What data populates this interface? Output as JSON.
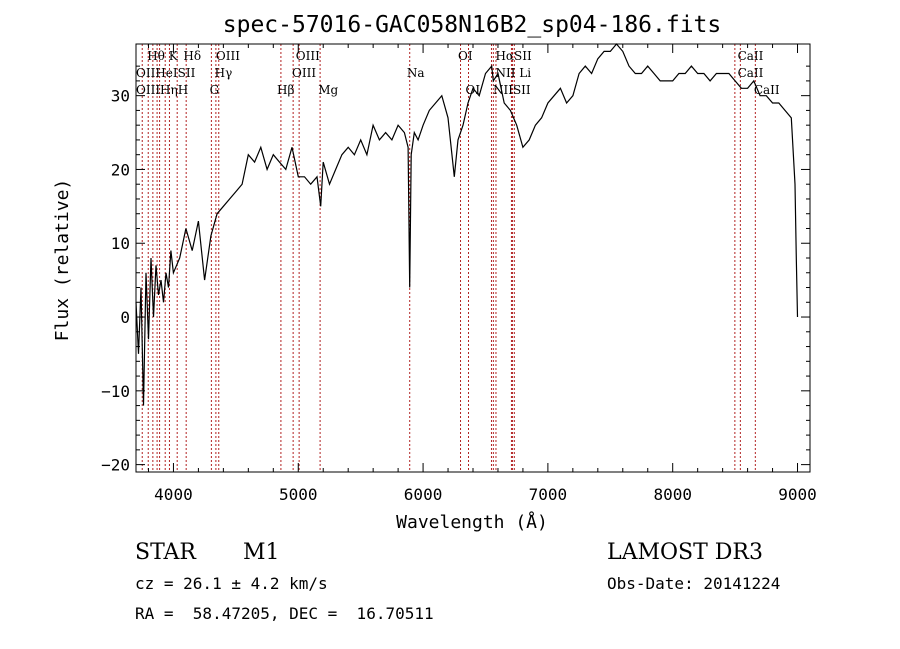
{
  "chart_data": {
    "type": "line",
    "title": "spec-57016-GAC058N16B2_sp04-186.fits",
    "xlabel": "Wavelength (Å)",
    "ylabel": "Flux (relative)",
    "xlim": [
      3700,
      9100
    ],
    "ylim": [
      -21,
      37
    ],
    "xticks": [
      4000,
      5000,
      6000,
      7000,
      8000,
      9000
    ],
    "yticks": [
      -20,
      -10,
      0,
      10,
      20,
      30
    ],
    "grid": false,
    "line_color": "#000000",
    "marker_color": "#b22222",
    "series": [
      {
        "x": [
          3700,
          3720,
          3740,
          3760,
          3780,
          3800,
          3820,
          3840,
          3860,
          3880,
          3900,
          3920,
          3940,
          3960,
          3980,
          4000,
          4050,
          4100,
          4150,
          4200,
          4250,
          4300,
          4350,
          4400,
          4450,
          4500,
          4550,
          4600,
          4650,
          4700,
          4750,
          4800,
          4850,
          4900,
          4950,
          5000,
          5050,
          5100,
          5150,
          5180,
          5200,
          5250,
          5300,
          5350,
          5400,
          5450,
          5500,
          5550,
          5600,
          5650,
          5700,
          5750,
          5800,
          5850,
          5880,
          5893,
          5905,
          5930,
          5960,
          6000,
          6050,
          6100,
          6150,
          6200,
          6250,
          6280,
          6320,
          6360,
          6400,
          6450,
          6500,
          6550,
          6563,
          6600,
          6650,
          6700,
          6750,
          6800,
          6850,
          6900,
          6950,
          7000,
          7050,
          7100,
          7150,
          7200,
          7250,
          7300,
          7350,
          7400,
          7450,
          7500,
          7550,
          7600,
          7650,
          7700,
          7750,
          7800,
          7850,
          7900,
          7950,
          8000,
          8050,
          8100,
          8150,
          8200,
          8250,
          8300,
          8350,
          8400,
          8450,
          8500,
          8550,
          8600,
          8650,
          8700,
          8750,
          8800,
          8850,
          8900,
          8950,
          8980,
          8990,
          9000
        ],
        "y": [
          2,
          -5,
          4,
          -12,
          6,
          -3,
          8,
          0,
          7,
          3,
          5,
          2,
          6,
          4,
          9,
          6,
          8,
          12,
          9,
          13,
          5,
          11,
          14,
          15,
          16,
          17,
          18,
          22,
          21,
          23,
          20,
          22,
          21,
          20,
          23,
          19,
          19,
          18,
          19,
          15,
          21,
          18,
          20,
          22,
          23,
          22,
          24,
          22,
          26,
          24,
          25,
          24,
          26,
          25,
          23,
          4,
          22,
          25,
          24,
          26,
          28,
          29,
          30,
          27,
          19,
          24,
          26,
          29,
          31,
          30,
          33,
          34,
          32,
          33,
          29,
          28,
          26,
          23,
          24,
          26,
          27,
          29,
          30,
          31,
          29,
          30,
          33,
          34,
          33,
          35,
          36,
          36,
          37,
          36,
          34,
          33,
          33,
          34,
          33,
          32,
          32,
          32,
          33,
          33,
          34,
          33,
          33,
          32,
          33,
          33,
          33,
          32,
          31,
          31,
          32,
          30,
          30,
          29,
          29,
          28,
          27,
          18,
          8,
          0
        ]
      }
    ],
    "lines": [
      {
        "wavelength": 3750,
        "label": "CaII"
      },
      {
        "wavelength": 3798,
        "label": "Hθ"
      },
      {
        "wavelength": 3835,
        "label": "Hη"
      },
      {
        "wavelength": 3869,
        "label": "NeIII"
      },
      {
        "wavelength": 3889,
        "label": "HeI"
      },
      {
        "wavelength": 3934,
        "label": "K"
      },
      {
        "wavelength": 3968,
        "label": "H"
      },
      {
        "wavelength": 4030,
        "label": "SII"
      },
      {
        "wavelength": 4102,
        "label": "Hδ"
      },
      {
        "wavelength": 4304,
        "label": "G"
      },
      {
        "wavelength": 4340,
        "label": "Hγ"
      },
      {
        "wavelength": 4363,
        "label": "OIII"
      },
      {
        "wavelength": 4861,
        "label": "Hβ"
      },
      {
        "wavelength": 4959,
        "label": "OIII"
      },
      {
        "wavelength": 5007,
        "label": "OIII"
      },
      {
        "wavelength": 5175,
        "label": "Mg"
      },
      {
        "wavelength": 5893,
        "label": "Na"
      },
      {
        "wavelength": 6300,
        "label": "OI"
      },
      {
        "wavelength": 6364,
        "label": "OI"
      },
      {
        "wavelength": 6548,
        "label": "NII"
      },
      {
        "wavelength": 6563,
        "label": "Hα"
      },
      {
        "wavelength": 6584,
        "label": "NII"
      },
      {
        "wavelength": 6708,
        "label": "Li"
      },
      {
        "wavelength": 6716,
        "label": "SII"
      },
      {
        "wavelength": 6731,
        "label": "SII"
      },
      {
        "wavelength": 8498,
        "label": "CaII"
      },
      {
        "wavelength": 8542,
        "label": "CaII"
      },
      {
        "wavelength": 8662,
        "label": "CaII"
      }
    ],
    "line_label_rows": [
      {
        "text": "Hθ K",
        "wavelength": 3790,
        "row": 0
      },
      {
        "text": "Hδ",
        "wavelength": 4080,
        "row": 0
      },
      {
        "text": "OIII",
        "wavelength": 4340,
        "row": 0
      },
      {
        "text": "OIII",
        "wavelength": 4980,
        "row": 0
      },
      {
        "text": "OI",
        "wavelength": 6280,
        "row": 0
      },
      {
        "text": "HαSII",
        "wavelength": 6580,
        "row": 0
      },
      {
        "text": "CaII",
        "wavelength": 8520,
        "row": 0
      },
      {
        "text": "OIIHeISII",
        "wavelength": 3700,
        "row": 1
      },
      {
        "text": "Hγ",
        "wavelength": 4330,
        "row": 1
      },
      {
        "text": "OIII",
        "wavelength": 4950,
        "row": 1
      },
      {
        "text": "Na",
        "wavelength": 5870,
        "row": 1
      },
      {
        "text": "NII Li",
        "wavelength": 6580,
        "row": 1
      },
      {
        "text": "CaII",
        "wavelength": 8520,
        "row": 1
      },
      {
        "text": "OIIIHηH",
        "wavelength": 3700,
        "row": 2
      },
      {
        "text": "G",
        "wavelength": 4290,
        "row": 2
      },
      {
        "text": "Hβ",
        "wavelength": 4830,
        "row": 2
      },
      {
        "text": "Mg",
        "wavelength": 5160,
        "row": 2
      },
      {
        "text": "OI",
        "wavelength": 6340,
        "row": 2
      },
      {
        "text": "NIISII",
        "wavelength": 6560,
        "row": 2
      },
      {
        "text": "CaII",
        "wavelength": 8650,
        "row": 2
      }
    ]
  },
  "info": {
    "class": "STAR",
    "subclass": "M1",
    "survey": "LAMOST DR3",
    "cz": "cz = 26.1 ± 4.2 km/s",
    "obs_date": "Obs-Date: 20141224",
    "coords": "RA =  58.47205, DEC =  16.70511"
  }
}
